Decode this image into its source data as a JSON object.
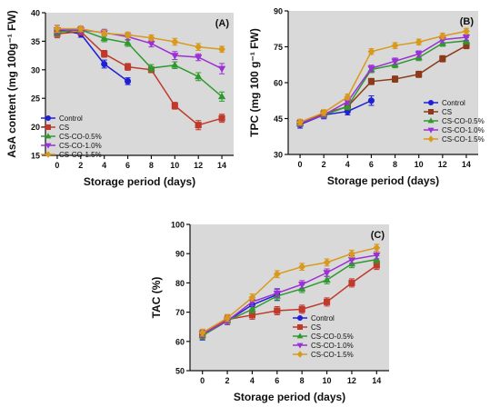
{
  "chart_data": [
    {
      "type": "line",
      "panel_label": "(A)",
      "xlabel": "Storage period (days)",
      "ylabel": "AsA content (mg 100g⁻¹ FW)",
      "x_ticks": [
        0,
        2,
        4,
        6,
        8,
        10,
        12,
        14
      ],
      "y_ticks": [
        15,
        20,
        25,
        30,
        35,
        40
      ],
      "xlim": [
        -1,
        15
      ],
      "ylim": [
        15,
        40
      ],
      "grid": false,
      "legend_position": "bottom-left",
      "series": [
        {
          "name": "Control",
          "color": "#1f1fd6",
          "marker": "circle",
          "x": [
            0,
            2,
            4,
            6
          ],
          "y": [
            37.0,
            36.3,
            31.0,
            28.0
          ],
          "err": [
            0.8,
            0.6,
            0.7,
            0.6
          ]
        },
        {
          "name": "CS",
          "color": "#c0392b",
          "marker": "square",
          "x": [
            0,
            2,
            4,
            6,
            8,
            10,
            12,
            14
          ],
          "y": [
            36.3,
            36.7,
            32.8,
            30.5,
            30.0,
            23.7,
            20.3,
            21.5
          ],
          "err": [
            0.7,
            0.6,
            0.6,
            0.6,
            0.5,
            0.6,
            0.8,
            0.7
          ]
        },
        {
          "name": "CS-CO-0.5%",
          "color": "#2e9a2e",
          "marker": "triangle-up",
          "x": [
            0,
            2,
            4,
            6,
            8,
            10,
            12,
            14
          ],
          "y": [
            36.6,
            37.0,
            35.5,
            34.7,
            30.3,
            30.8,
            28.8,
            25.3
          ],
          "err": [
            0.7,
            0.6,
            0.6,
            0.6,
            0.6,
            0.6,
            0.7,
            0.8
          ]
        },
        {
          "name": "CS-CO-1.0%",
          "color": "#9b30d6",
          "marker": "triangle-down",
          "x": [
            0,
            2,
            4,
            6,
            8,
            10,
            12,
            14
          ],
          "y": [
            37.0,
            37.0,
            36.5,
            35.8,
            34.6,
            32.5,
            32.2,
            30.2
          ],
          "err": [
            0.8,
            0.6,
            0.6,
            0.6,
            0.6,
            0.7,
            0.6,
            0.9
          ]
        },
        {
          "name": "CS-CO-1.5%",
          "color": "#d89a1e",
          "marker": "diamond",
          "x": [
            0,
            2,
            4,
            6,
            8,
            10,
            12,
            14
          ],
          "y": [
            37.2,
            37.2,
            36.4,
            36.1,
            35.6,
            34.9,
            34.0,
            33.6
          ],
          "err": [
            0.6,
            0.5,
            0.5,
            0.5,
            0.5,
            0.6,
            0.6,
            0.5
          ]
        }
      ]
    },
    {
      "type": "line",
      "panel_label": "(B)",
      "xlabel": "Storage period (days)",
      "ylabel": "TPC (mg 100 g⁻¹ FW)",
      "x_ticks": [
        0,
        2,
        4,
        6,
        8,
        10,
        12,
        14
      ],
      "y_ticks": [
        30,
        45,
        60,
        75,
        90
      ],
      "xlim": [
        -1,
        15
      ],
      "ylim": [
        30,
        90
      ],
      "grid": false,
      "legend_position": "bottom-right",
      "series": [
        {
          "name": "Control",
          "color": "#1f1fd6",
          "marker": "circle",
          "x": [
            0,
            2,
            4,
            6
          ],
          "y": [
            42.5,
            46.5,
            48.0,
            52.5
          ],
          "err": [
            1.5,
            1.6,
            1.5,
            2.0
          ]
        },
        {
          "name": "CS",
          "color": "#8b3a1a",
          "marker": "square",
          "x": [
            0,
            2,
            4,
            6,
            8,
            10,
            12,
            14
          ],
          "y": [
            43.0,
            47.0,
            50.0,
            60.5,
            61.5,
            63.5,
            70.0,
            75.5
          ],
          "err": [
            1.3,
            1.3,
            1.3,
            1.3,
            1.3,
            1.3,
            1.3,
            1.3
          ]
        },
        {
          "name": "CS-CO-0.5%",
          "color": "#2e9a2e",
          "marker": "triangle-up",
          "x": [
            0,
            2,
            4,
            6,
            8,
            10,
            12,
            14
          ],
          "y": [
            43.0,
            46.5,
            50.0,
            65.5,
            67.5,
            70.5,
            76.5,
            77.5
          ],
          "err": [
            1.3,
            1.3,
            1.3,
            1.3,
            1.3,
            1.3,
            1.3,
            1.3
          ]
        },
        {
          "name": "CS-CO-1.0%",
          "color": "#9b30d6",
          "marker": "triangle-down",
          "x": [
            0,
            2,
            4,
            6,
            8,
            10,
            12,
            14
          ],
          "y": [
            43.0,
            46.5,
            52.0,
            66.0,
            69.0,
            72.0,
            78.0,
            79.0
          ],
          "err": [
            1.3,
            1.3,
            1.3,
            1.3,
            1.3,
            1.3,
            1.3,
            1.3
          ]
        },
        {
          "name": "CS-CO-1.5%",
          "color": "#d89a1e",
          "marker": "diamond",
          "x": [
            0,
            2,
            4,
            6,
            8,
            10,
            12,
            14
          ],
          "y": [
            43.5,
            47.5,
            54.0,
            73.0,
            75.5,
            77.0,
            79.5,
            81.5
          ],
          "err": [
            1.2,
            1.2,
            1.2,
            1.2,
            1.2,
            1.2,
            1.2,
            1.2
          ]
        }
      ]
    },
    {
      "type": "line",
      "panel_label": "(C)",
      "xlabel": "Storage period (days)",
      "ylabel": "TAC (%)",
      "x_ticks": [
        0,
        2,
        4,
        6,
        8,
        10,
        12,
        14
      ],
      "y_ticks": [
        50,
        60,
        70,
        80,
        90,
        100
      ],
      "xlim": [
        -1,
        15
      ],
      "ylim": [
        50,
        100
      ],
      "grid": false,
      "legend_position": "bottom-right",
      "series": [
        {
          "name": "Control",
          "color": "#1f1fd6",
          "marker": "circle",
          "x": [
            0,
            2,
            4,
            6
          ],
          "y": [
            62.0,
            67.0,
            72.5,
            76.0
          ],
          "err": [
            1.5,
            1.3,
            1.5,
            2.0
          ]
        },
        {
          "name": "CS",
          "color": "#c0392b",
          "marker": "square",
          "x": [
            0,
            2,
            4,
            6,
            8,
            10,
            12,
            14
          ],
          "y": [
            62.5,
            67.5,
            69.0,
            70.5,
            71.0,
            73.5,
            80.0,
            86.0
          ],
          "err": [
            1.4,
            1.4,
            1.4,
            1.4,
            1.4,
            1.4,
            1.4,
            1.4
          ]
        },
        {
          "name": "CS-CO-0.5%",
          "color": "#2e9a2e",
          "marker": "triangle-up",
          "x": [
            0,
            2,
            4,
            6,
            8,
            10,
            12,
            14
          ],
          "y": [
            62.0,
            67.0,
            71.0,
            75.5,
            78.0,
            81.0,
            86.5,
            88.0
          ],
          "err": [
            1.3,
            1.3,
            1.3,
            1.3,
            1.3,
            1.3,
            1.3,
            1.3
          ]
        },
        {
          "name": "CS-CO-1.0%",
          "color": "#9b30d6",
          "marker": "triangle-down",
          "x": [
            0,
            2,
            4,
            6,
            8,
            10,
            12,
            14
          ],
          "y": [
            62.5,
            67.0,
            73.5,
            76.5,
            79.5,
            83.5,
            88.0,
            89.5
          ],
          "err": [
            1.3,
            1.3,
            1.3,
            1.3,
            1.3,
            1.3,
            1.3,
            1.3
          ]
        },
        {
          "name": "CS-CO-1.5%",
          "color": "#d89a1e",
          "marker": "diamond",
          "x": [
            0,
            2,
            4,
            6,
            8,
            10,
            12,
            14
          ],
          "y": [
            63.0,
            68.0,
            75.0,
            83.0,
            85.5,
            87.0,
            90.0,
            92.0
          ],
          "err": [
            1.2,
            1.2,
            1.2,
            1.2,
            1.2,
            1.2,
            1.2,
            1.2
          ]
        }
      ]
    }
  ]
}
